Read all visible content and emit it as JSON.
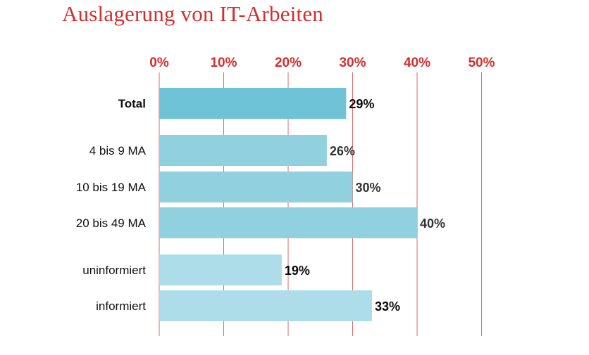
{
  "chart_data": {
    "type": "bar",
    "orientation": "horizontal",
    "title": "Auslagerung von IT-Arbeiten",
    "xlim": [
      0,
      50
    ],
    "x_ticks": [
      0,
      10,
      20,
      30,
      40,
      50
    ],
    "tick_labels": [
      "0%",
      "10%",
      "20%",
      "30%",
      "40%",
      "50%"
    ],
    "grid": true,
    "categories": [
      "Total",
      "4 bis 9 MA",
      "10 bis 19 MA",
      "20 bis 49 MA",
      "uninformiert",
      "informiert"
    ],
    "values": [
      29,
      26,
      30,
      40,
      19,
      33
    ],
    "value_labels": [
      "29%",
      "26%",
      "30%",
      "40%",
      "19%",
      "33%"
    ],
    "groups": [
      "total",
      "size",
      "size",
      "size",
      "info",
      "info"
    ]
  },
  "colors": {
    "title": "#d42e2e",
    "ticks": "#d42e2e",
    "grid": "#e06565",
    "bar_total": "#6fc3d6",
    "bar_size": "#90d0df",
    "bar_info": "#addde8",
    "value_label_dark": "#0a0a0a",
    "value_label_grey": "#333333"
  }
}
